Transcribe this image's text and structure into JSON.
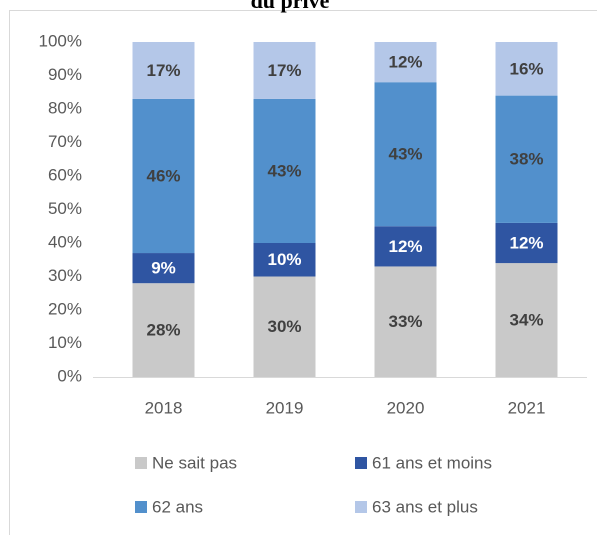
{
  "chart_data": {
    "type": "stacked_bar",
    "title": "du privé",
    "categories": [
      "2018",
      "2019",
      "2020",
      "2021"
    ],
    "series": [
      {
        "name": "Ne sait pas",
        "color": "#c9c9c9",
        "label_color": "#404040",
        "values": [
          28,
          30,
          33,
          34
        ],
        "value_labels": [
          "28%",
          "30%",
          "33%",
          "34%"
        ]
      },
      {
        "name": "61 ans et moins",
        "color": "#2f55a2",
        "label_color": "#ffffff",
        "values": [
          9,
          10,
          12,
          12
        ],
        "value_labels": [
          "9%",
          "10%",
          "12%",
          "12%"
        ]
      },
      {
        "name": "62 ans",
        "color": "#5290cc",
        "label_color": "#404040",
        "values": [
          46,
          43,
          43,
          38
        ],
        "value_labels": [
          "46%",
          "43%",
          "43%",
          "38%"
        ]
      },
      {
        "name": "63 ans et plus",
        "color": "#b4c7e8",
        "label_color": "#404040",
        "values": [
          17,
          17,
          12,
          16
        ],
        "value_labels": [
          "17%",
          "17%",
          "12%",
          "16%"
        ]
      }
    ],
    "ylim": [
      0,
      100
    ],
    "yticks": [
      {
        "value": 0,
        "label": "0%"
      },
      {
        "value": 10,
        "label": "10%"
      },
      {
        "value": 20,
        "label": "20%"
      },
      {
        "value": 30,
        "label": "30%"
      },
      {
        "value": 40,
        "label": "40%"
      },
      {
        "value": 50,
        "label": "50%"
      },
      {
        "value": 60,
        "label": "60%"
      },
      {
        "value": 70,
        "label": "70%"
      },
      {
        "value": 80,
        "label": "80%"
      },
      {
        "value": 90,
        "label": "90%"
      },
      {
        "value": {
          "value": 100,
          "label": "100%"
        }
      }
    ],
    "legend": "bottom"
  }
}
